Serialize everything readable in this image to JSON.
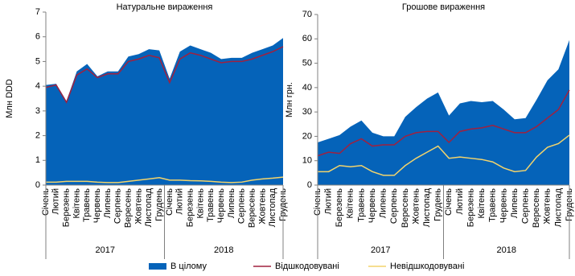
{
  "chart_data": [
    {
      "type": "area",
      "title": "Натуральне вираження",
      "y_label": "Млн DDD",
      "categories": [
        "Січень",
        "Лютий",
        "Березень",
        "Квітень",
        "Травень",
        "Червень",
        "Липень",
        "Серпень",
        "Вересень",
        "Жовтень",
        "Листопад",
        "Грудень",
        "Січень",
        "Лютий",
        "Березень",
        "Квітень",
        "Травень",
        "Червень",
        "Липень",
        "Серпень",
        "Вересень",
        "Жовтень",
        "Листопад",
        "Грудень"
      ],
      "years": [
        "2017",
        "2018"
      ],
      "ylim": [
        0,
        7
      ],
      "yticks": [
        0,
        1,
        2,
        3,
        4,
        5,
        6,
        7
      ],
      "series": [
        {
          "name": "В цілому",
          "color": "#0563b9",
          "values": [
            4.05,
            4.1,
            3.4,
            4.6,
            4.9,
            4.4,
            4.6,
            4.6,
            5.2,
            5.3,
            5.5,
            5.45,
            4.3,
            5.4,
            5.65,
            5.5,
            5.35,
            5.1,
            5.15,
            5.15,
            5.35,
            5.5,
            5.65,
            5.95
          ]
        },
        {
          "name": "Відшкодовувані",
          "color": "#a0213f",
          "values": [
            3.95,
            4.05,
            3.35,
            4.45,
            4.7,
            4.35,
            4.5,
            4.5,
            5.0,
            5.1,
            5.25,
            5.15,
            4.15,
            5.1,
            5.35,
            5.25,
            5.1,
            4.95,
            5.0,
            5.0,
            5.1,
            5.25,
            5.4,
            5.6
          ]
        },
        {
          "name": "Невідшкодовувані",
          "color": "#f3d46c",
          "values": [
            0.12,
            0.12,
            0.15,
            0.15,
            0.15,
            0.12,
            0.1,
            0.1,
            0.15,
            0.2,
            0.25,
            0.3,
            0.2,
            0.2,
            0.18,
            0.17,
            0.15,
            0.12,
            0.1,
            0.12,
            0.2,
            0.25,
            0.28,
            0.32
          ]
        }
      ]
    },
    {
      "type": "area",
      "title": "Грошове вираження",
      "y_label": "Млн грн.",
      "categories": [
        "Січень",
        "Лютий",
        "Березень",
        "Квітень",
        "Травень",
        "Червень",
        "Липень",
        "Серпень",
        "Вересень",
        "Жовтень",
        "Листопад",
        "Грудень",
        "Січень",
        "Лютий",
        "Березень",
        "Квітень",
        "Травень",
        "Червень",
        "Липень",
        "Серпень",
        "Вересень",
        "Жовтень",
        "Листопад",
        "Грудень"
      ],
      "years": [
        "2017",
        "2018"
      ],
      "ylim": [
        0,
        70
      ],
      "yticks": [
        0,
        10,
        20,
        30,
        40,
        50,
        60,
        70
      ],
      "series": [
        {
          "color": "#0563b9",
          "values": [
            17.5,
            19,
            20.5,
            24,
            26.5,
            21.5,
            20,
            20,
            28,
            32,
            35.5,
            38,
            28.5,
            33.5,
            34.5,
            34,
            34.5,
            31,
            27,
            27.5,
            35,
            43,
            47.5,
            59.5
          ]
        },
        {
          "color": "#a0213f",
          "values": [
            12,
            13.5,
            13,
            17,
            19,
            16,
            16.5,
            16.5,
            20,
            21.5,
            22,
            22,
            17.5,
            22,
            23,
            23.5,
            24.5,
            23,
            21.5,
            21.5,
            24,
            27.5,
            31,
            39
          ]
        },
        {
          "color": "#f3d46c",
          "values": [
            5.5,
            5.5,
            8,
            7.5,
            8,
            5.5,
            4,
            4,
            8,
            11,
            13.5,
            16,
            11,
            11.5,
            11,
            10.5,
            9.5,
            7,
            5.5,
            6,
            11.5,
            15.5,
            17,
            20.5
          ]
        }
      ]
    }
  ]
}
